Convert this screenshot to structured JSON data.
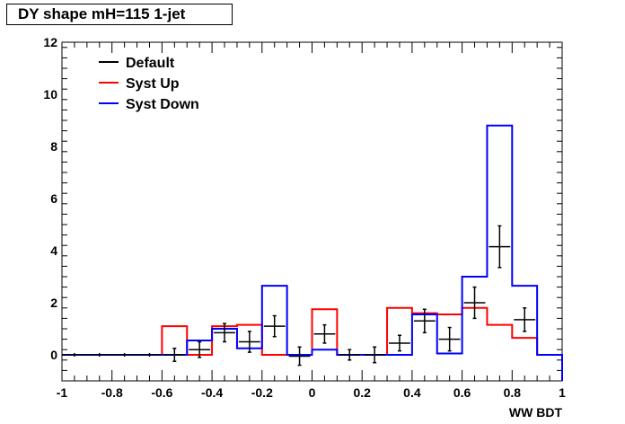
{
  "chart_data": {
    "type": "histogram",
    "title": "DY shape mH=115 1-jet",
    "xlabel": "WW BDT",
    "ylabel": "",
    "xlim": [
      -1,
      1
    ],
    "ylim": [
      -1,
      12
    ],
    "x_ticks": [
      -1,
      -0.8,
      -0.6,
      -0.4,
      -0.2,
      0,
      0.2,
      0.4,
      0.6,
      0.8,
      1
    ],
    "x_tick_labels": [
      "-1",
      "-0.8",
      "-0.6",
      "-0.4",
      "-0.2",
      "0",
      "0.2",
      "0.4",
      "0.6",
      "0.8",
      "1"
    ],
    "y_ticks": [
      0,
      2,
      4,
      6,
      8,
      10,
      12
    ],
    "y_tick_labels": [
      "0",
      "2",
      "4",
      "6",
      "8",
      "10",
      "12"
    ],
    "bin_edges": [
      -1,
      -0.9,
      -0.8,
      -0.7,
      -0.6,
      -0.5,
      -0.4,
      -0.3,
      -0.2,
      -0.1,
      0,
      0.1,
      0.2,
      0.3,
      0.4,
      0.5,
      0.6,
      0.7,
      0.8,
      0.9,
      1
    ],
    "legend_position": "top-left",
    "series": [
      {
        "name": "Default",
        "color": "#000000",
        "style": "points-with-errors",
        "values": [
          0,
          0,
          0,
          0,
          0,
          0.2,
          0.85,
          0.5,
          1.1,
          -0.05,
          0.8,
          0,
          0,
          0.45,
          1.3,
          0.6,
          2.0,
          4.15,
          1.35,
          0
        ],
        "errors": [
          0,
          0,
          0,
          0,
          0.25,
          0.3,
          0.35,
          0.4,
          0.4,
          0.35,
          0.35,
          0.2,
          0.3,
          0.3,
          0.45,
          0.45,
          0.6,
          0.8,
          0.45,
          0
        ]
      },
      {
        "name": "Syst Up",
        "color": "#ff0000",
        "style": "step",
        "values": [
          0,
          0,
          0,
          0,
          1.1,
          0,
          1.1,
          1.15,
          0,
          0,
          1.75,
          0,
          0,
          1.8,
          1.6,
          1.55,
          1.8,
          1.15,
          0.65,
          0
        ]
      },
      {
        "name": "Syst Down",
        "color": "#0000ff",
        "style": "step",
        "values": [
          0,
          0,
          0,
          0,
          0,
          0.55,
          1.0,
          0.25,
          2.65,
          0,
          0.2,
          0,
          0,
          0,
          1.55,
          0.05,
          3.0,
          8.8,
          2.65,
          0
        ]
      }
    ]
  }
}
